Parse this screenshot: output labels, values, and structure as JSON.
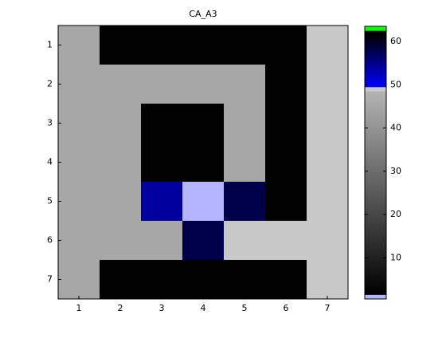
{
  "chart_data": {
    "type": "heatmap",
    "title": "CA_A3",
    "x": [
      1,
      2,
      3,
      4,
      5,
      6,
      7
    ],
    "y": [
      1,
      2,
      3,
      4,
      5,
      6,
      7
    ],
    "xlim": [
      0.5,
      7.5
    ],
    "ylim": [
      0.5,
      7.5
    ],
    "y_reversed": true,
    "xticks": [
      1,
      2,
      3,
      4,
      5,
      6,
      7
    ],
    "yticks": [
      1,
      2,
      3,
      4,
      5,
      6,
      7
    ],
    "z": [
      [
        45,
        2,
        2,
        2,
        2,
        2,
        49
      ],
      [
        45,
        45,
        45,
        45,
        45,
        2,
        49
      ],
      [
        45,
        45,
        2,
        2,
        45,
        2,
        49
      ],
      [
        45,
        45,
        2,
        2,
        45,
        2,
        49
      ],
      [
        45,
        45,
        54,
        1,
        58,
        2,
        49
      ],
      [
        45,
        45,
        45,
        58,
        49,
        49,
        49
      ],
      [
        45,
        2,
        2,
        2,
        2,
        2,
        49
      ]
    ],
    "colorbar": {
      "lim": [
        0.5,
        63.5
      ],
      "ticks": [
        10,
        20,
        30,
        40,
        50,
        60
      ]
    },
    "colormap": [
      [
        0.5,
        "#b4b4ff"
      ],
      [
        1.5,
        "#b4b4ff"
      ],
      [
        1.5,
        "#000000"
      ],
      [
        48.5,
        "#b4b4b4"
      ],
      [
        48.5,
        "#c8c8c8"
      ],
      [
        49.5,
        "#c8c8c8"
      ],
      [
        49.5,
        "#0000ff"
      ],
      [
        61.5,
        "#000000"
      ],
      [
        62.5,
        "#000000"
      ],
      [
        62.5,
        "#00ff00"
      ],
      [
        63.5,
        "#00ff00"
      ]
    ]
  }
}
